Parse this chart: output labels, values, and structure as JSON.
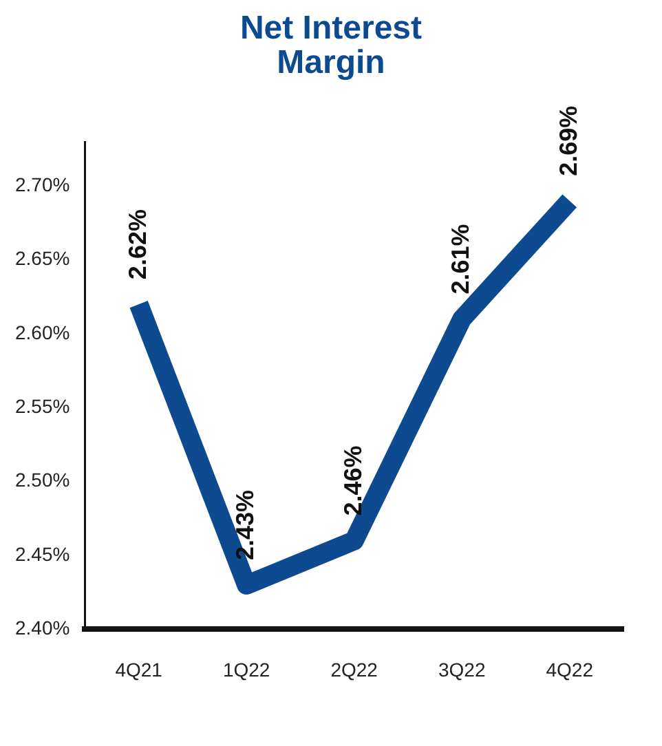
{
  "chart_data": {
    "type": "line",
    "title": "Net Interest Margin",
    "categories": [
      "4Q21",
      "1Q22",
      "2Q22",
      "3Q22",
      "4Q22"
    ],
    "series": [
      {
        "color": "#0d4a8f",
        "values": [
          2.62,
          2.43,
          2.46,
          2.61,
          2.69
        ],
        "value_labels": [
          "2.62%",
          "2.43%",
          "2.46%",
          "2.61%",
          "2.69%"
        ]
      }
    ],
    "ylim": [
      2.4,
      2.73
    ],
    "yticks": [
      {
        "value": 2.4,
        "label": "2.40%"
      },
      {
        "value": 2.45,
        "label": "2.45%"
      },
      {
        "value": 2.5,
        "label": "2.50%"
      },
      {
        "value": 2.55,
        "label": "2.55%"
      },
      {
        "value": 2.6,
        "label": "2.60%"
      },
      {
        "value": 2.65,
        "label": "2.65%"
      },
      {
        "value": 2.7,
        "label": "2.70%"
      }
    ],
    "grid": false,
    "legend": false,
    "marker": "none",
    "line_style": "solid"
  }
}
